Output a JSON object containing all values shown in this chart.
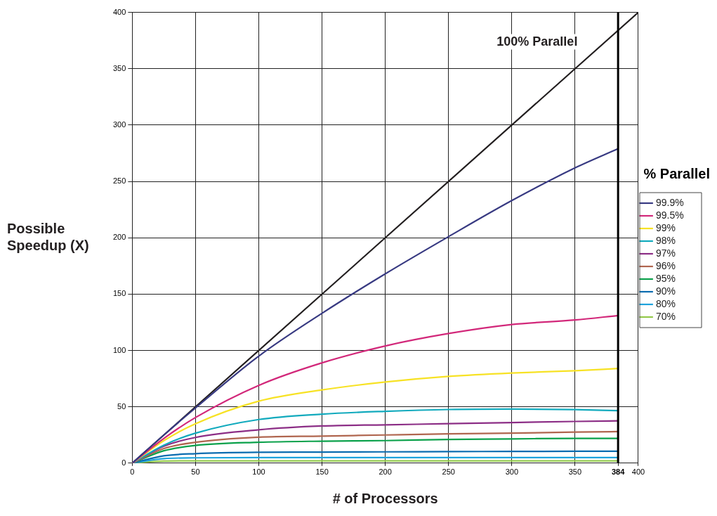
{
  "chart_data": {
    "type": "line",
    "xlabel": "# of Processors",
    "ylabel": "Possible Speedup (X)",
    "legend_title": "% Parallel",
    "x": [
      0,
      25,
      50,
      100,
      150,
      200,
      250,
      300,
      350,
      384
    ],
    "series": [
      {
        "name": "99.9%",
        "color": "#383a82",
        "values": [
          0,
          25,
          49,
          95,
          133,
          168,
          201,
          233,
          262,
          279
        ]
      },
      {
        "name": "99.5%",
        "color": "#d2287a",
        "values": [
          0,
          22,
          40.5,
          69,
          89,
          104,
          115,
          123,
          127,
          131
        ]
      },
      {
        "name": "99%",
        "color": "#f7e225",
        "values": [
          0,
          20,
          35,
          55,
          65,
          72,
          77,
          80,
          82,
          84
        ]
      },
      {
        "name": "98%",
        "color": "#12aabd",
        "values": [
          0,
          16,
          26.6,
          38.7,
          43.5,
          46,
          47.6,
          48,
          47.5,
          46.6
        ]
      },
      {
        "name": "97%",
        "color": "#8c2e86",
        "values": [
          0,
          15,
          22.8,
          29.6,
          33,
          34,
          35,
          36,
          37,
          37.5
        ]
      },
      {
        "name": "96%",
        "color": "#b0664f",
        "values": [
          0,
          13,
          18.5,
          23,
          24,
          25,
          26,
          26.6,
          27.5,
          28
        ]
      },
      {
        "name": "95%",
        "color": "#0ba14b",
        "values": [
          0,
          11,
          15.7,
          18.5,
          19.5,
          20,
          21,
          21.5,
          22,
          22
        ]
      },
      {
        "name": "90%",
        "color": "#0b6cb0",
        "values": [
          0,
          6.5,
          8.4,
          9.6,
          9.8,
          10,
          10.2,
          10.4,
          10.5,
          10.6
        ]
      },
      {
        "name": "80%",
        "color": "#1ea3dc",
        "values": [
          0,
          4,
          4.7,
          5,
          5,
          5,
          5,
          5,
          5,
          5
        ]
      },
      {
        "name": "70%",
        "color": "#93c94a",
        "values": [
          0,
          1.8,
          2,
          2,
          2,
          2,
          2,
          2,
          2,
          2
        ]
      },
      {
        "color": "#231f20",
        "x": [
          0,
          400
        ],
        "values": [
          0,
          400
        ]
      }
    ],
    "xlim": [
      0,
      400
    ],
    "xticks": [
      0,
      50,
      100,
      150,
      200,
      250,
      300,
      350,
      384,
      400
    ],
    "ylim": [
      0,
      400
    ],
    "yticks": [
      0,
      50,
      100,
      150,
      200,
      250,
      300,
      350,
      400
    ],
    "ref_lines": [
      {
        "axis": "x",
        "value": 384,
        "color": "#000000"
      }
    ],
    "annotations": [
      "100% Parallel"
    ],
    "grid": true,
    "legend": "right",
    "marker": "none",
    "line_style": "solid"
  }
}
